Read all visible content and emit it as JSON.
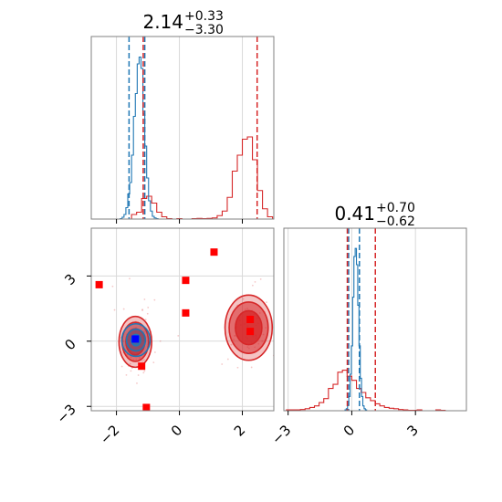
{
  "chart_data": {
    "type": "corner",
    "title": "",
    "colors": {
      "red": "#d62728",
      "blue": "#1f77b4",
      "marker_red": "#ff0000",
      "marker_blue": "#0000ff",
      "grid": "#d9d9d9",
      "axis": "#808080"
    },
    "param1": {
      "label_main": "2.14",
      "label_plus": "+0.33",
      "label_minus": "−3.30",
      "xlim": [
        -2.8,
        3.0
      ],
      "ticks": [
        -2,
        0,
        2
      ],
      "tick_labels": [
        "−2",
        "0",
        "2"
      ],
      "hist_red": {
        "x0": -2.8,
        "step": 0.16,
        "counts": [
          0,
          0,
          0,
          0,
          0,
          0,
          0,
          0,
          0.2,
          0.3,
          0.9,
          1.0,
          0.7,
          0.3,
          0.1,
          0.02,
          0,
          0.02,
          0,
          0,
          0.02,
          0.03,
          0.02,
          0.03,
          0.05,
          0.15,
          0.35,
          0.95,
          2.1,
          2.8,
          3.5,
          3.6,
          2.6,
          1.25,
          0.45,
          0.1,
          0
        ]
      },
      "hist_blue": {
        "x0": -1.88,
        "step": 0.06,
        "counts": [
          0.02,
          0.08,
          0.2,
          0.5,
          1.1,
          1.6,
          2.8,
          4.5,
          5.5,
          6.8,
          7.1,
          6.6,
          4.6,
          3.2,
          1.8,
          0.8,
          0.35,
          0.12,
          0.05,
          0.02,
          0
        ]
      },
      "hist_max": 8.0,
      "lines_red": [
        -1.15,
        2.47
      ],
      "lines_blue": [
        -1.6,
        -1.1
      ]
    },
    "param2": {
      "label_main": "0.41",
      "label_plus": "+0.70",
      "label_minus": "−0.62",
      "xlim": [
        -3.2,
        5.4
      ],
      "ticks": [
        -3,
        0,
        3
      ],
      "tick_labels": [
        "−3",
        "0",
        "3"
      ],
      "hist_red": {
        "x0": -3.3,
        "step": 0.22,
        "counts": [
          0,
          0.02,
          0.02,
          0.02,
          0.03,
          0.05,
          0.08,
          0.12,
          0.2,
          0.3,
          0.55,
          0.65,
          0.95,
          1.0,
          0.85,
          0.75,
          0.55,
          0.45,
          0.32,
          0.25,
          0.17,
          0.12,
          0.08,
          0.06,
          0.05,
          0.03,
          0.02,
          0.01,
          0.01,
          0.02,
          0,
          0,
          0,
          0.02,
          0.01,
          0
        ]
      },
      "hist_blue": {
        "x0": -0.32,
        "step": 0.06,
        "counts": [
          0.02,
          0.05,
          0.15,
          0.35,
          0.9,
          1.6,
          2.8,
          3.8,
          4.0,
          3.6,
          2.6,
          1.6,
          0.8,
          0.35,
          0.12,
          0.05,
          0.02,
          0
        ]
      },
      "hist_max": 4.5,
      "lines_red": [
        -0.21,
        1.11
      ],
      "lines_blue": [
        -0.15,
        0.36
      ]
    },
    "joint": {
      "ylim": [
        -3.2,
        5.2
      ],
      "yticks": [
        -3,
        0,
        3
      ],
      "ytick_labels": [
        "−3",
        "0",
        "3"
      ],
      "contours_red": [
        {
          "cx": -1.4,
          "cy": -0.03,
          "levels": [
            [
              0.52,
              1.17,
              0.28
            ],
            [
              0.42,
              0.9,
              0.55
            ],
            [
              0.3,
              0.6,
              0.8
            ]
          ]
        },
        {
          "cx": 2.2,
          "cy": 0.62,
          "levels": [
            [
              0.75,
              1.5,
              0.28
            ],
            [
              0.62,
              1.18,
              0.55
            ],
            [
              0.42,
              0.78,
              0.8
            ]
          ]
        }
      ],
      "contours_blue": [
        {
          "cx": -1.38,
          "cy": 0.05,
          "levels": [
            [
              0.45,
              0.75,
              0.12
            ],
            [
              0.3,
              0.5,
              0.3
            ],
            [
              0.15,
              0.26,
              0.7
            ]
          ]
        }
      ],
      "markers_red": [
        [
          -2.55,
          2.6
        ],
        [
          0.2,
          2.8
        ],
        [
          1.1,
          4.1
        ],
        [
          0.2,
          1.3
        ],
        [
          2.25,
          1.0
        ],
        [
          2.25,
          0.45
        ],
        [
          -1.2,
          -1.15
        ],
        [
          -1.05,
          -3.05
        ]
      ],
      "markers_blue": [
        [
          -1.4,
          0.1
        ]
      ]
    }
  }
}
